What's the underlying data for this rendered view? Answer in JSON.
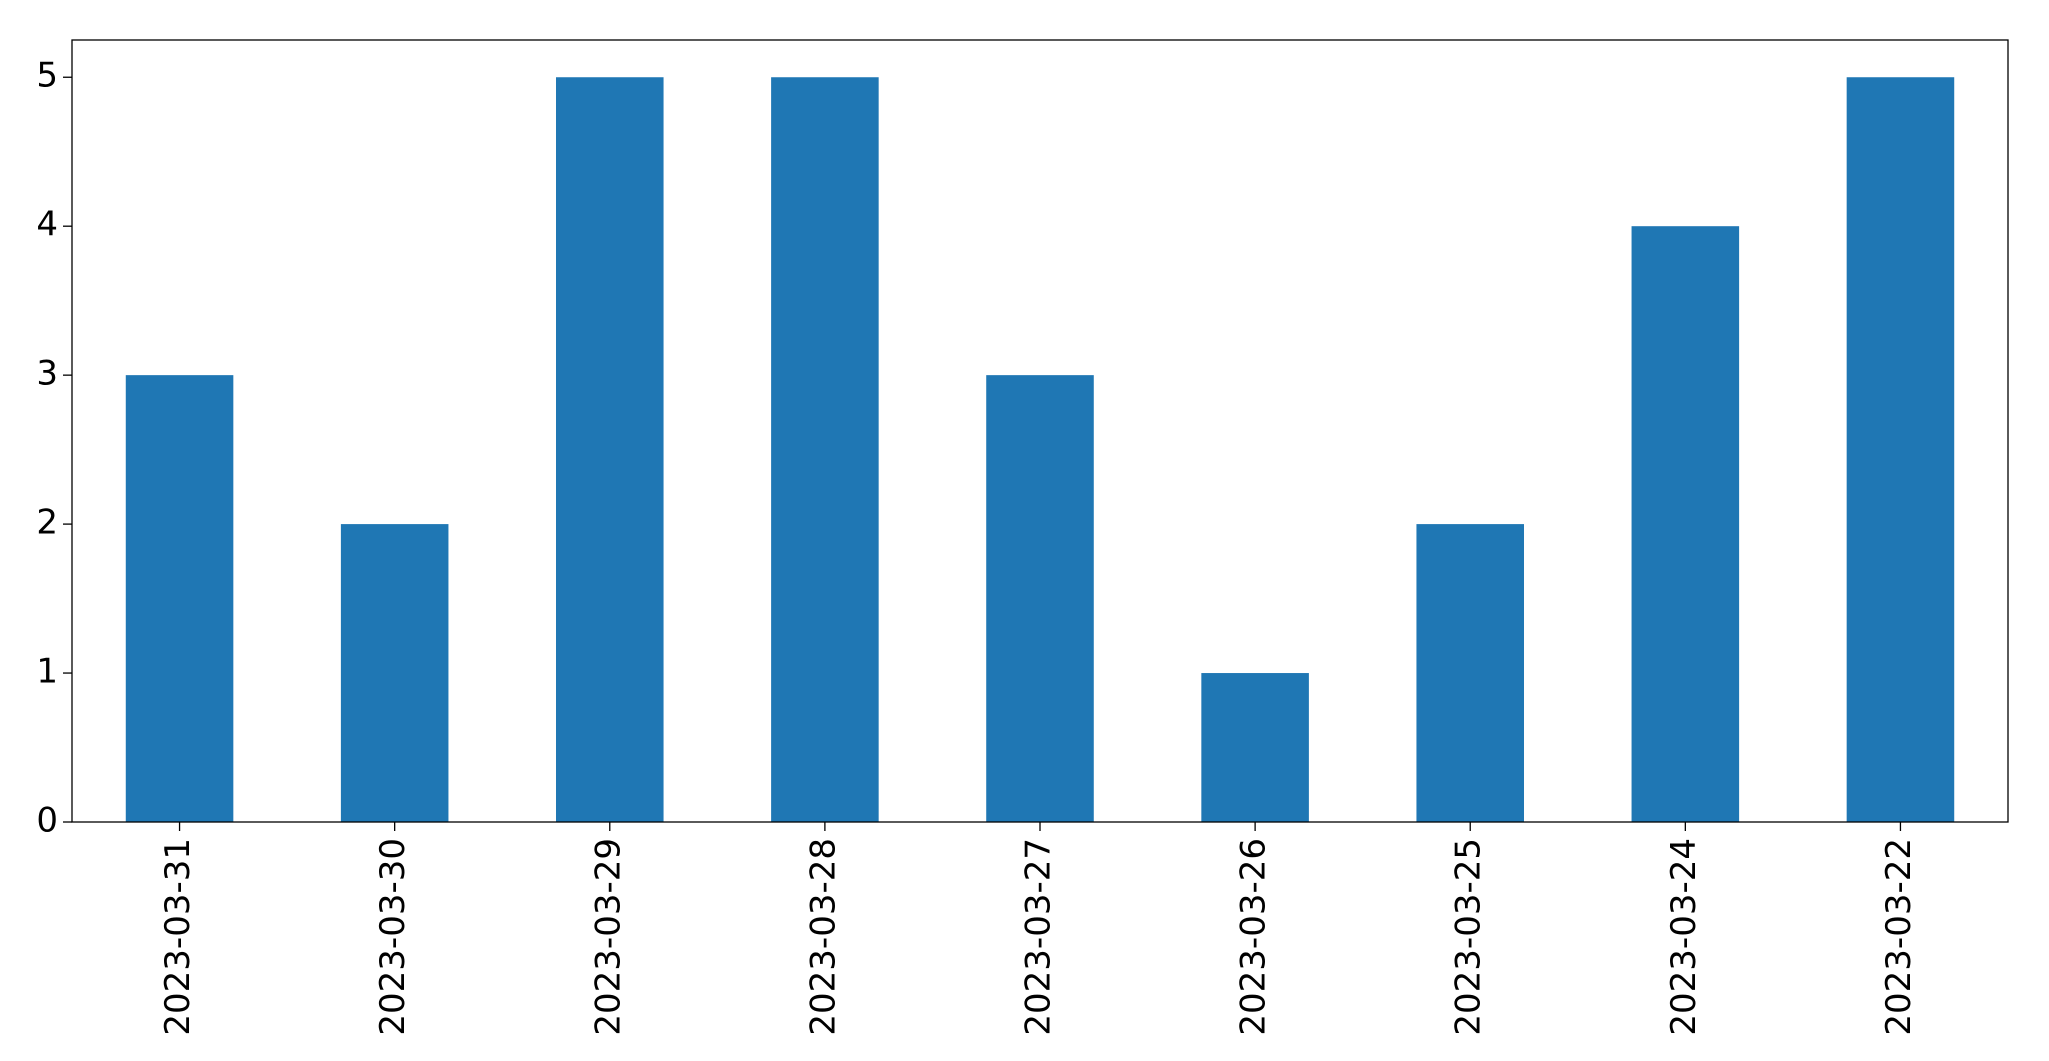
{
  "chart_data": {
    "type": "bar",
    "categories": [
      "2023-03-31",
      "2023-03-30",
      "2023-03-29",
      "2023-03-28",
      "2023-03-27",
      "2023-03-26",
      "2023-03-25",
      "2023-03-24",
      "2023-03-22"
    ],
    "values": [
      3,
      2,
      5,
      5,
      3,
      1,
      2,
      4,
      5
    ],
    "color": "#1f77b4",
    "ylim": [
      0,
      5.25
    ],
    "yticks": [
      0,
      1,
      2,
      3,
      4,
      5
    ],
    "grid": false
  }
}
